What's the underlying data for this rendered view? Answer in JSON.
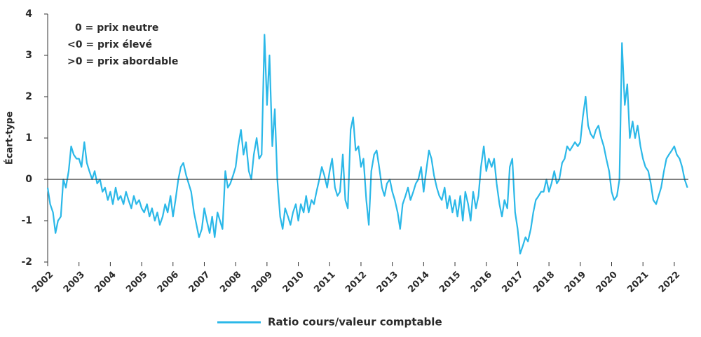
{
  "chart_data": {
    "type": "line",
    "ylabel": "Écart-type",
    "annotations": [
      "0 = prix neutre",
      "<0 = prix élevé",
      ">0 = prix abordable"
    ],
    "xlim": [
      2002,
      2022.45
    ],
    "xticks": [
      2002,
      2003,
      2004,
      2005,
      2006,
      2007,
      2008,
      2009,
      2010,
      2011,
      2012,
      2013,
      2014,
      2015,
      2016,
      2017,
      2018,
      2019,
      2020,
      2021,
      2022
    ],
    "ylim": [
      -2,
      4
    ],
    "yticks": [
      -2,
      -1,
      0,
      1,
      2,
      3,
      4
    ],
    "x": [
      2002.0,
      2002.08,
      2002.17,
      2002.25,
      2002.33,
      2002.42,
      2002.5,
      2002.58,
      2002.67,
      2002.75,
      2002.83,
      2002.92,
      2003.0,
      2003.08,
      2003.17,
      2003.25,
      2003.33,
      2003.42,
      2003.5,
      2003.58,
      2003.67,
      2003.75,
      2003.83,
      2003.92,
      2004.0,
      2004.08,
      2004.17,
      2004.25,
      2004.33,
      2004.42,
      2004.5,
      2004.58,
      2004.67,
      2004.75,
      2004.83,
      2004.92,
      2005.0,
      2005.08,
      2005.17,
      2005.25,
      2005.33,
      2005.42,
      2005.5,
      2005.58,
      2005.67,
      2005.75,
      2005.83,
      2005.92,
      2006.0,
      2006.08,
      2006.17,
      2006.25,
      2006.33,
      2006.42,
      2006.5,
      2006.58,
      2006.67,
      2006.75,
      2006.83,
      2006.92,
      2007.0,
      2007.08,
      2007.17,
      2007.25,
      2007.33,
      2007.42,
      2007.5,
      2007.58,
      2007.67,
      2007.75,
      2007.83,
      2007.92,
      2008.0,
      2008.08,
      2008.17,
      2008.25,
      2008.33,
      2008.42,
      2008.5,
      2008.58,
      2008.67,
      2008.75,
      2008.83,
      2008.92,
      2009.0,
      2009.08,
      2009.17,
      2009.25,
      2009.33,
      2009.42,
      2009.5,
      2009.58,
      2009.67,
      2009.75,
      2009.83,
      2009.92,
      2010.0,
      2010.08,
      2010.17,
      2010.25,
      2010.33,
      2010.42,
      2010.5,
      2010.58,
      2010.67,
      2010.75,
      2010.83,
      2010.92,
      2011.0,
      2011.08,
      2011.17,
      2011.25,
      2011.33,
      2011.42,
      2011.5,
      2011.58,
      2011.67,
      2011.75,
      2011.83,
      2011.92,
      2012.0,
      2012.08,
      2012.17,
      2012.25,
      2012.33,
      2012.42,
      2012.5,
      2012.58,
      2012.67,
      2012.75,
      2012.83,
      2012.92,
      2013.0,
      2013.08,
      2013.17,
      2013.25,
      2013.33,
      2013.42,
      2013.5,
      2013.58,
      2013.67,
      2013.75,
      2013.83,
      2013.92,
      2014.0,
      2014.08,
      2014.17,
      2014.25,
      2014.33,
      2014.42,
      2014.5,
      2014.58,
      2014.67,
      2014.75,
      2014.83,
      2014.92,
      2015.0,
      2015.08,
      2015.17,
      2015.25,
      2015.33,
      2015.42,
      2015.5,
      2015.58,
      2015.67,
      2015.75,
      2015.83,
      2015.92,
      2016.0,
      2016.08,
      2016.17,
      2016.25,
      2016.33,
      2016.42,
      2016.5,
      2016.58,
      2016.67,
      2016.75,
      2016.83,
      2016.92,
      2017.0,
      2017.08,
      2017.17,
      2017.25,
      2017.33,
      2017.42,
      2017.5,
      2017.58,
      2017.67,
      2017.75,
      2017.83,
      2017.92,
      2018.0,
      2018.08,
      2018.17,
      2018.25,
      2018.33,
      2018.42,
      2018.5,
      2018.58,
      2018.67,
      2018.75,
      2018.83,
      2018.92,
      2019.0,
      2019.08,
      2019.17,
      2019.25,
      2019.33,
      2019.42,
      2019.5,
      2019.58,
      2019.67,
      2019.75,
      2019.83,
      2019.92,
      2020.0,
      2020.08,
      2020.17,
      2020.25,
      2020.33,
      2020.42,
      2020.5,
      2020.58,
      2020.67,
      2020.75,
      2020.83,
      2020.92,
      2021.0,
      2021.08,
      2021.17,
      2021.25,
      2021.33,
      2021.42,
      2021.5,
      2021.58,
      2021.67,
      2021.75,
      2021.83,
      2021.92,
      2022.0,
      2022.08,
      2022.17,
      2022.25,
      2022.33,
      2022.42
    ],
    "series": [
      {
        "name": "Ratio cours/valeur comptable",
        "color": "#2bb8e8",
        "values": [
          -0.2,
          -0.6,
          -0.8,
          -1.3,
          -1.0,
          -0.9,
          0.0,
          -0.2,
          0.2,
          0.8,
          0.6,
          0.5,
          0.5,
          0.3,
          0.9,
          0.4,
          0.2,
          0.0,
          0.2,
          -0.1,
          0.0,
          -0.3,
          -0.2,
          -0.5,
          -0.3,
          -0.6,
          -0.2,
          -0.5,
          -0.4,
          -0.6,
          -0.3,
          -0.5,
          -0.7,
          -0.4,
          -0.6,
          -0.5,
          -0.7,
          -0.8,
          -0.6,
          -0.9,
          -0.7,
          -1.0,
          -0.8,
          -1.1,
          -0.9,
          -0.6,
          -0.8,
          -0.4,
          -0.9,
          -0.5,
          0.0,
          0.3,
          0.4,
          0.1,
          -0.1,
          -0.3,
          -0.8,
          -1.1,
          -1.4,
          -1.2,
          -0.7,
          -1.0,
          -1.3,
          -0.9,
          -1.4,
          -0.8,
          -1.0,
          -1.2,
          0.2,
          -0.2,
          -0.1,
          0.1,
          0.3,
          0.8,
          1.2,
          0.6,
          0.9,
          0.2,
          0.0,
          0.6,
          1.0,
          0.5,
          0.6,
          3.5,
          1.8,
          3.0,
          0.8,
          1.7,
          0.0,
          -0.9,
          -1.2,
          -0.7,
          -0.9,
          -1.1,
          -0.8,
          -0.6,
          -1.0,
          -0.6,
          -0.8,
          -0.4,
          -0.8,
          -0.5,
          -0.6,
          -0.3,
          0.0,
          0.3,
          0.1,
          -0.2,
          0.2,
          0.5,
          -0.2,
          -0.4,
          -0.3,
          0.6,
          -0.5,
          -0.7,
          1.2,
          1.5,
          0.7,
          0.8,
          0.3,
          0.5,
          -0.5,
          -1.1,
          0.2,
          0.6,
          0.7,
          0.3,
          -0.2,
          -0.4,
          -0.1,
          0.0,
          -0.3,
          -0.5,
          -0.8,
          -1.2,
          -0.6,
          -0.4,
          -0.2,
          -0.5,
          -0.3,
          -0.1,
          0.0,
          0.3,
          -0.3,
          0.2,
          0.7,
          0.5,
          0.1,
          -0.2,
          -0.4,
          -0.5,
          -0.2,
          -0.7,
          -0.4,
          -0.8,
          -0.5,
          -0.9,
          -0.4,
          -1.0,
          -0.3,
          -0.6,
          -1.0,
          -0.3,
          -0.7,
          -0.4,
          0.3,
          0.8,
          0.2,
          0.5,
          0.3,
          0.5,
          -0.1,
          -0.6,
          -0.9,
          -0.5,
          -0.7,
          0.3,
          0.5,
          -0.8,
          -1.2,
          -1.8,
          -1.6,
          -1.4,
          -1.5,
          -1.2,
          -0.8,
          -0.5,
          -0.4,
          -0.3,
          -0.3,
          0.0,
          -0.3,
          -0.1,
          0.2,
          -0.1,
          0.0,
          0.4,
          0.5,
          0.8,
          0.7,
          0.8,
          0.9,
          0.8,
          0.9,
          1.5,
          2.0,
          1.3,
          1.1,
          1.0,
          1.2,
          1.3,
          1.0,
          0.8,
          0.5,
          0.2,
          -0.3,
          -0.5,
          -0.4,
          0.0,
          3.3,
          1.8,
          2.3,
          1.0,
          1.4,
          1.0,
          1.3,
          0.8,
          0.5,
          0.3,
          0.2,
          -0.1,
          -0.5,
          -0.6,
          -0.4,
          -0.2,
          0.2,
          0.5,
          0.6,
          0.7,
          0.8,
          0.6,
          0.5,
          0.3,
          0.0,
          -0.2
        ]
      }
    ]
  }
}
